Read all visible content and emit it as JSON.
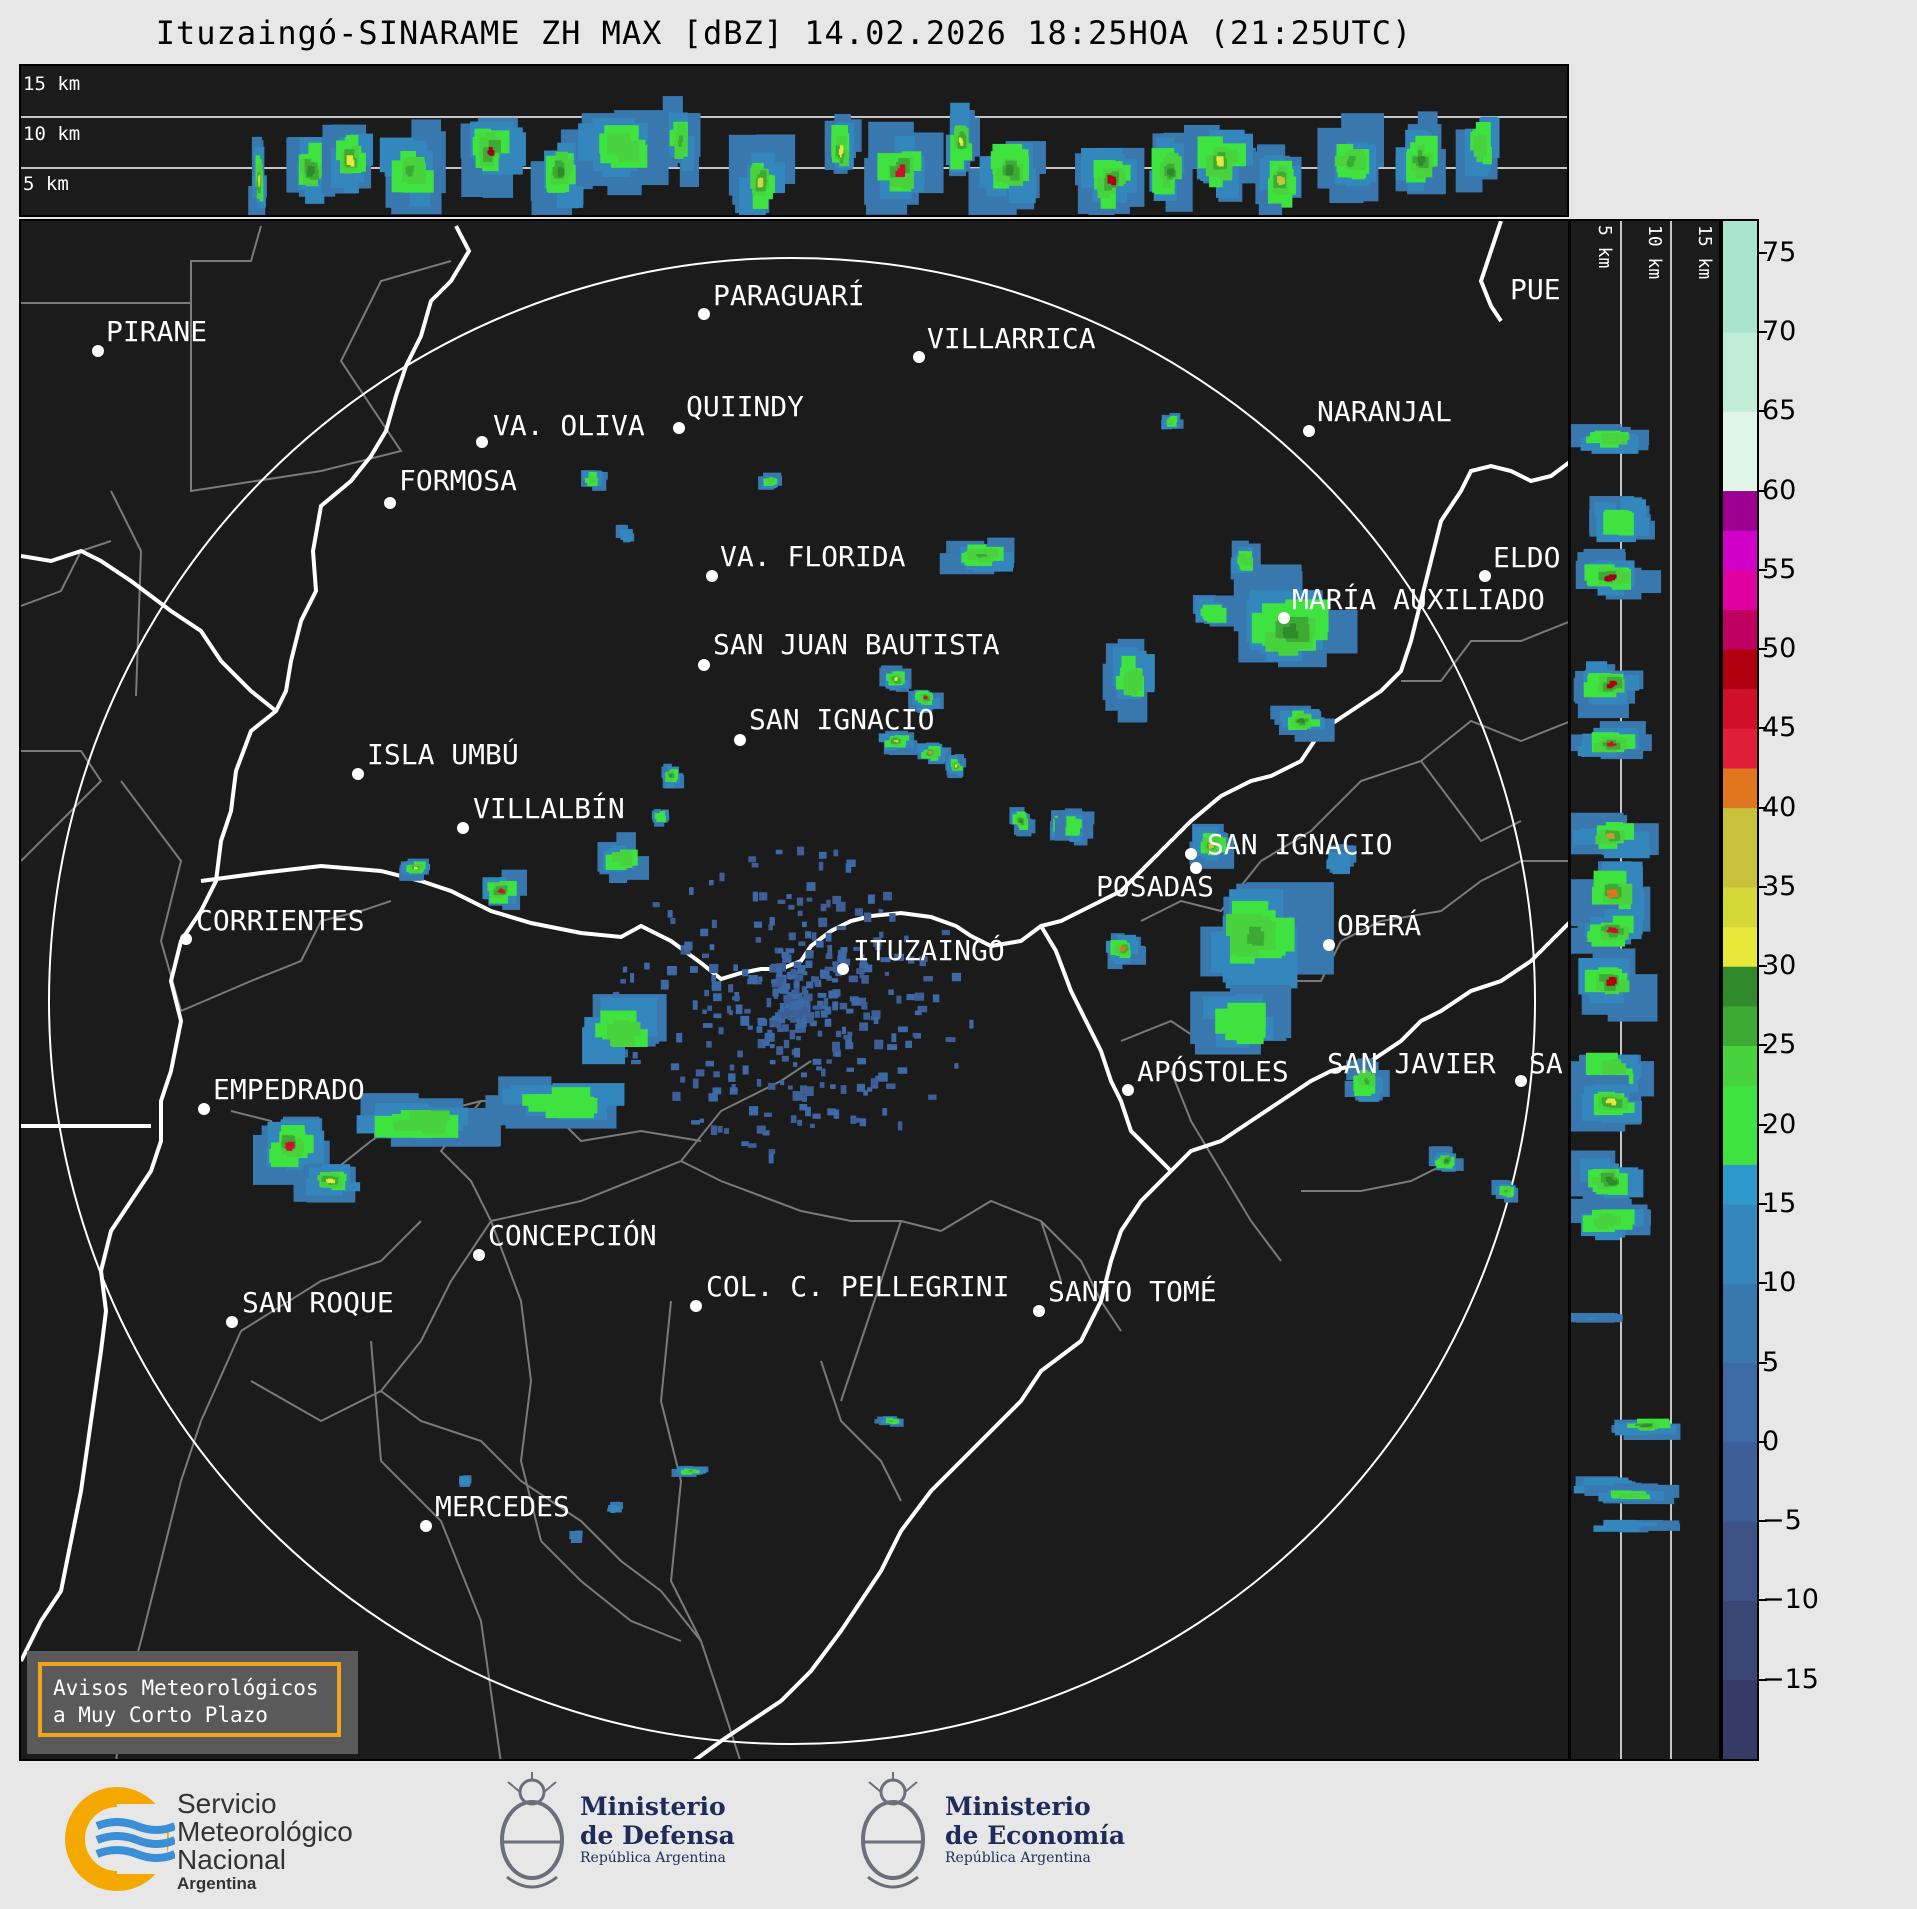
{
  "title": "Ituzaingó-SINARAME ZH MAX [dBZ] 14.02.2026 18:25HOA (21:25UTC)",
  "top_section": {
    "height_labels": [
      "15 km",
      "10 km",
      "5 km"
    ]
  },
  "side_section": {
    "height_labels": [
      "5 km",
      "10 km",
      "15 km"
    ]
  },
  "colorbar": {
    "unit": "dBZ",
    "ticks": [
      "75",
      "70",
      "65",
      "60",
      "55",
      "50",
      "45",
      "40",
      "35",
      "30",
      "25",
      "20",
      "15",
      "10",
      "5",
      "0",
      "−5",
      "−10",
      "−15"
    ],
    "tick_values": [
      75,
      70,
      65,
      60,
      55,
      50,
      45,
      40,
      35,
      30,
      25,
      20,
      15,
      10,
      5,
      0,
      -5,
      -10,
      -15
    ],
    "range": [
      -20,
      77
    ]
  },
  "cities": [
    {
      "name": "PIRANE"
    },
    {
      "name": "PARAGUARÍ"
    },
    {
      "name": "VILLARRICA"
    },
    {
      "name": "PUE"
    },
    {
      "name": "VA. OLIVA"
    },
    {
      "name": "QUIINDY"
    },
    {
      "name": "NARANJAL"
    },
    {
      "name": "FORMOSA"
    },
    {
      "name": "VA. FLORIDA"
    },
    {
      "name": "ELDO"
    },
    {
      "name": "MARÍA AUXILIADO"
    },
    {
      "name": "SAN JUAN BAUTISTA"
    },
    {
      "name": "SAN IGNACIO"
    },
    {
      "name": "ISLA UMBÚ"
    },
    {
      "name": "VILLALBÍN"
    },
    {
      "name": "SAN IGNACIO"
    },
    {
      "name": "POSADAS"
    },
    {
      "name": "CORRIENTES"
    },
    {
      "name": "ITUZAINGÓ"
    },
    {
      "name": "OBERÁ"
    },
    {
      "name": "EMPEDRADO"
    },
    {
      "name": "APÓSTOLES"
    },
    {
      "name": "SAN JAVIER"
    },
    {
      "name": "SA"
    },
    {
      "name": "CONCEPCIÓN"
    },
    {
      "name": "COL. C. PELLEGRINI"
    },
    {
      "name": "SANTO TOMÉ"
    },
    {
      "name": "SAN ROQUE"
    },
    {
      "name": "MERCEDES"
    }
  ],
  "warning_box": {
    "line1": "Avisos Meteorológicos",
    "line2": "a Muy Corto Plazo"
  },
  "logos": {
    "smn": {
      "line1": "Servicio",
      "line2": "Meteorológico",
      "line3": "Nacional",
      "line4": "Argentina"
    },
    "defensa": {
      "line1": "Ministerio",
      "line2": "de Defensa",
      "line3": "República Argentina"
    },
    "economia": {
      "line1": "Ministerio",
      "line2": "de Economía",
      "line3": "República Argentina"
    }
  },
  "colors": {
    "background": "#1b1b1b",
    "border_river": "#ffffff",
    "admin_lines": "#808080",
    "warning_border": "#f2a41c",
    "smn_orange": "#f5a800",
    "smn_blue": "#3a8fd6"
  }
}
